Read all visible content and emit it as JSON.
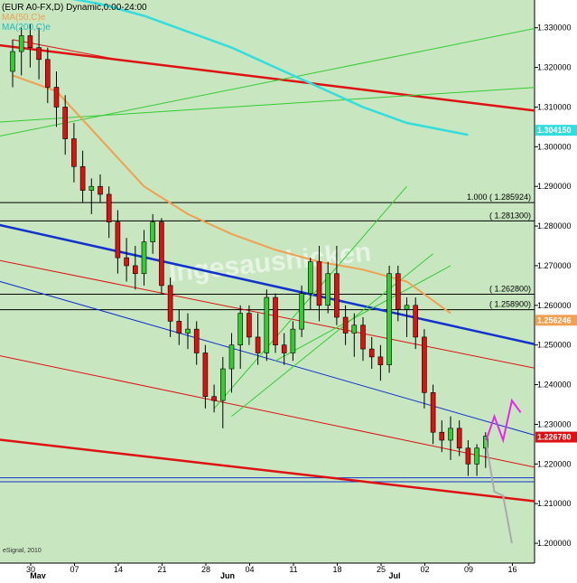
{
  "header": {
    "title": "(EUR A0-FX,D) Dynamic,0:00-24:00",
    "ma50_label": "MA(50,C)e",
    "ma200_label": "MA(200,C)e"
  },
  "watermark": "eSignal, 2010",
  "watermark_site": "Ingesaushicken",
  "colors": {
    "background": "#ffffff",
    "plot_bg": "#c8e6c0",
    "price_axis_bg": "#ffffff",
    "bull_candle": "#33cc33",
    "bear_candle": "#dd1111",
    "ma50": "#f0a050",
    "ma200": "#33dddd",
    "red_channel": "#dd1111",
    "blue_channel": "#1133cc",
    "green_fan": "#33cc33",
    "magenta_projection": "#ee22ee",
    "gray_projection": "#aaaaaa"
  },
  "chart_data": {
    "type": "candlestick",
    "title": "(EUR A0-FX,D) Dynamic,0:00-24:00",
    "instrument": "EUR A0-FX",
    "timeframe": "D",
    "ylim": [
      1.195,
      1.337
    ],
    "y_ticks": [
      "1.330000",
      "1.320000",
      "1.310000",
      "1.300000",
      "1.290000",
      "1.280000",
      "1.270000",
      "1.260000",
      "1.250000",
      "1.240000",
      "1.230000",
      "1.220000",
      "1.210000",
      "1.200000"
    ],
    "x_ticks_day": [
      "30",
      "07",
      "14",
      "21",
      "28",
      "04",
      "11",
      "18",
      "25",
      "02",
      "09",
      "16"
    ],
    "x_ticks_month": [
      "May",
      "Jun",
      "Jul"
    ],
    "price_badges": [
      {
        "label": "1.304150",
        "value": 1.30415,
        "color": "#33dddd"
      },
      {
        "label": "1.256246",
        "value": 1.256246,
        "color": "#f0a050"
      },
      {
        "label": "1.226780",
        "value": 1.22678,
        "color": "#dd1111"
      }
    ],
    "level_labels": [
      {
        "label": "1.000 ( 1.285924)",
        "value": 1.285924
      },
      {
        "label": "( 1.281300)",
        "value": 1.2813
      },
      {
        "label": "( 1.262800)",
        "value": 1.2628
      },
      {
        "label": "( 1.258900)",
        "value": 1.2589
      }
    ],
    "candles": [
      {
        "i": 0,
        "o": 1.319,
        "h": 1.327,
        "l": 1.315,
        "c": 1.324
      },
      {
        "i": 1,
        "o": 1.324,
        "h": 1.33,
        "l": 1.318,
        "c": 1.328
      },
      {
        "i": 2,
        "o": 1.328,
        "h": 1.331,
        "l": 1.32,
        "c": 1.325
      },
      {
        "i": 3,
        "o": 1.325,
        "h": 1.33,
        "l": 1.317,
        "c": 1.322
      },
      {
        "i": 4,
        "o": 1.322,
        "h": 1.325,
        "l": 1.311,
        "c": 1.315
      },
      {
        "i": 5,
        "o": 1.315,
        "h": 1.319,
        "l": 1.305,
        "c": 1.31
      },
      {
        "i": 6,
        "o": 1.31,
        "h": 1.313,
        "l": 1.298,
        "c": 1.302
      },
      {
        "i": 7,
        "o": 1.302,
        "h": 1.306,
        "l": 1.291,
        "c": 1.295
      },
      {
        "i": 8,
        "o": 1.295,
        "h": 1.299,
        "l": 1.286,
        "c": 1.289
      },
      {
        "i": 9,
        "o": 1.289,
        "h": 1.292,
        "l": 1.283,
        "c": 1.29
      },
      {
        "i": 10,
        "o": 1.29,
        "h": 1.293,
        "l": 1.286,
        "c": 1.288
      },
      {
        "i": 11,
        "o": 1.288,
        "h": 1.29,
        "l": 1.277,
        "c": 1.281
      },
      {
        "i": 12,
        "o": 1.281,
        "h": 1.284,
        "l": 1.268,
        "c": 1.272
      },
      {
        "i": 13,
        "o": 1.272,
        "h": 1.277,
        "l": 1.266,
        "c": 1.27
      },
      {
        "i": 14,
        "o": 1.27,
        "h": 1.275,
        "l": 1.264,
        "c": 1.268
      },
      {
        "i": 15,
        "o": 1.268,
        "h": 1.279,
        "l": 1.265,
        "c": 1.276
      },
      {
        "i": 16,
        "o": 1.276,
        "h": 1.283,
        "l": 1.273,
        "c": 1.281
      },
      {
        "i": 17,
        "o": 1.281,
        "h": 1.282,
        "l": 1.263,
        "c": 1.265
      },
      {
        "i": 18,
        "o": 1.265,
        "h": 1.267,
        "l": 1.252,
        "c": 1.256
      },
      {
        "i": 19,
        "o": 1.256,
        "h": 1.259,
        "l": 1.25,
        "c": 1.253
      },
      {
        "i": 20,
        "o": 1.253,
        "h": 1.258,
        "l": 1.249,
        "c": 1.254
      },
      {
        "i": 21,
        "o": 1.254,
        "h": 1.256,
        "l": 1.245,
        "c": 1.248
      },
      {
        "i": 22,
        "o": 1.248,
        "h": 1.25,
        "l": 1.234,
        "c": 1.237
      },
      {
        "i": 23,
        "o": 1.237,
        "h": 1.24,
        "l": 1.233,
        "c": 1.236
      },
      {
        "i": 24,
        "o": 1.236,
        "h": 1.247,
        "l": 1.229,
        "c": 1.244
      },
      {
        "i": 25,
        "o": 1.244,
        "h": 1.253,
        "l": 1.238,
        "c": 1.25
      },
      {
        "i": 26,
        "o": 1.25,
        "h": 1.26,
        "l": 1.244,
        "c": 1.258
      },
      {
        "i": 27,
        "o": 1.258,
        "h": 1.26,
        "l": 1.25,
        "c": 1.252
      },
      {
        "i": 28,
        "o": 1.252,
        "h": 1.258,
        "l": 1.245,
        "c": 1.248
      },
      {
        "i": 29,
        "o": 1.248,
        "h": 1.264,
        "l": 1.246,
        "c": 1.262
      },
      {
        "i": 30,
        "o": 1.262,
        "h": 1.263,
        "l": 1.248,
        "c": 1.25
      },
      {
        "i": 31,
        "o": 1.25,
        "h": 1.253,
        "l": 1.245,
        "c": 1.248
      },
      {
        "i": 32,
        "o": 1.248,
        "h": 1.256,
        "l": 1.246,
        "c": 1.254
      },
      {
        "i": 33,
        "o": 1.254,
        "h": 1.265,
        "l": 1.252,
        "c": 1.263
      },
      {
        "i": 34,
        "o": 1.263,
        "h": 1.272,
        "l": 1.259,
        "c": 1.271
      },
      {
        "i": 35,
        "o": 1.271,
        "h": 1.275,
        "l": 1.256,
        "c": 1.26
      },
      {
        "i": 36,
        "o": 1.26,
        "h": 1.271,
        "l": 1.258,
        "c": 1.268
      },
      {
        "i": 37,
        "o": 1.268,
        "h": 1.275,
        "l": 1.255,
        "c": 1.257
      },
      {
        "i": 38,
        "o": 1.257,
        "h": 1.26,
        "l": 1.25,
        "c": 1.253
      },
      {
        "i": 39,
        "o": 1.253,
        "h": 1.258,
        "l": 1.247,
        "c": 1.255
      },
      {
        "i": 40,
        "o": 1.255,
        "h": 1.257,
        "l": 1.246,
        "c": 1.249
      },
      {
        "i": 41,
        "o": 1.249,
        "h": 1.252,
        "l": 1.244,
        "c": 1.247
      },
      {
        "i": 42,
        "o": 1.247,
        "h": 1.25,
        "l": 1.241,
        "c": 1.245
      },
      {
        "i": 43,
        "o": 1.245,
        "h": 1.27,
        "l": 1.243,
        "c": 1.268
      },
      {
        "i": 44,
        "o": 1.268,
        "h": 1.27,
        "l": 1.256,
        "c": 1.259
      },
      {
        "i": 45,
        "o": 1.259,
        "h": 1.262,
        "l": 1.252,
        "c": 1.26
      },
      {
        "i": 46,
        "o": 1.26,
        "h": 1.262,
        "l": 1.249,
        "c": 1.252
      },
      {
        "i": 47,
        "o": 1.252,
        "h": 1.254,
        "l": 1.234,
        "c": 1.238
      },
      {
        "i": 48,
        "o": 1.238,
        "h": 1.24,
        "l": 1.225,
        "c": 1.228
      },
      {
        "i": 49,
        "o": 1.228,
        "h": 1.231,
        "l": 1.223,
        "c": 1.226
      },
      {
        "i": 50,
        "o": 1.226,
        "h": 1.232,
        "l": 1.221,
        "c": 1.229
      },
      {
        "i": 51,
        "o": 1.229,
        "h": 1.231,
        "l": 1.222,
        "c": 1.224
      },
      {
        "i": 52,
        "o": 1.224,
        "h": 1.226,
        "l": 1.217,
        "c": 1.22
      },
      {
        "i": 53,
        "o": 1.22,
        "h": 1.225,
        "l": 1.217,
        "c": 1.224
      },
      {
        "i": 54,
        "o": 1.224,
        "h": 1.228,
        "l": 1.219,
        "c": 1.227
      }
    ],
    "ma50": [
      [
        0,
        1.318
      ],
      [
        5,
        1.314
      ],
      [
        10,
        1.302
      ],
      [
        15,
        1.29
      ],
      [
        20,
        1.283
      ],
      [
        25,
        1.278
      ],
      [
        30,
        1.274
      ],
      [
        35,
        1.271
      ],
      [
        40,
        1.269
      ],
      [
        45,
        1.266
      ],
      [
        50,
        1.258
      ]
    ],
    "ma200": [
      [
        0,
        1.339
      ],
      [
        5,
        1.338
      ],
      [
        10,
        1.336
      ],
      [
        15,
        1.333
      ],
      [
        20,
        1.329
      ],
      [
        25,
        1.325
      ],
      [
        30,
        1.32
      ],
      [
        35,
        1.315
      ],
      [
        40,
        1.31
      ],
      [
        45,
        1.306
      ],
      [
        52,
        1.303
      ]
    ],
    "horizontal_levels": [
      1.285924,
      1.2813,
      1.2628,
      1.2589,
      1.2165,
      1.2155
    ],
    "trendlines": [
      {
        "color": "red_channel",
        "width": 2.5,
        "from": [
          -3,
          1.326
        ],
        "to": [
          60,
          1.309
        ]
      },
      {
        "color": "red_channel",
        "width": 2.5,
        "from": [
          -3,
          1.2265
        ],
        "to": [
          60,
          1.2105
        ]
      },
      {
        "color": "blue_channel",
        "width": 2.5,
        "from": [
          -3,
          1.281
        ],
        "to": [
          60,
          1.25
        ]
      },
      {
        "color": "blue_channel",
        "width": 1,
        "from": [
          -3,
          1.267
        ],
        "to": [
          60,
          1.227
        ]
      },
      {
        "color": "red_channel",
        "width": 1,
        "from": [
          -3,
          1.272
        ],
        "to": [
          60,
          1.244
        ]
      },
      {
        "color": "red_channel",
        "width": 1,
        "from": [
          -3,
          1.248
        ],
        "to": [
          60,
          1.219
        ]
      },
      {
        "color": "red_channel",
        "width": 1,
        "from": [
          0,
          1.327
        ],
        "to": [
          12,
          1.322
        ]
      },
      {
        "color": "green_fan",
        "width": 1,
        "from": [
          -3,
          1.302
        ],
        "to": [
          60,
          1.33
        ]
      },
      {
        "color": "green_fan",
        "width": 1,
        "from": [
          -3,
          1.306
        ],
        "to": [
          60,
          1.315
        ]
      },
      {
        "color": "green_fan",
        "width": 1,
        "from": [
          23,
          1.234
        ],
        "to": [
          45,
          1.29
        ]
      },
      {
        "color": "green_fan",
        "width": 1,
        "from": [
          25,
          1.232
        ],
        "to": [
          48,
          1.273
        ]
      },
      {
        "color": "green_fan",
        "width": 1,
        "from": [
          30,
          1.246
        ],
        "to": [
          50,
          1.27
        ]
      }
    ],
    "projections": [
      {
        "color": "magenta_projection",
        "points": [
          [
            54,
            1.2255
          ],
          [
            55,
            1.232
          ],
          [
            56,
            1.226
          ],
          [
            57,
            1.236
          ],
          [
            58,
            1.233
          ]
        ]
      },
      {
        "color": "gray_projection",
        "points": [
          [
            54,
            1.226
          ],
          [
            55,
            1.213
          ],
          [
            56,
            1.212
          ],
          [
            57,
            1.2
          ]
        ]
      }
    ]
  }
}
